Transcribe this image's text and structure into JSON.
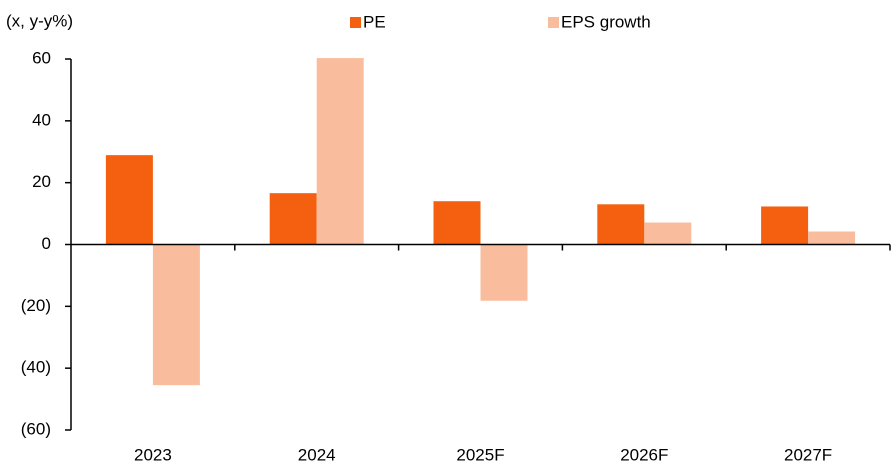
{
  "chart_data": {
    "type": "bar",
    "y_axis_label": "(x, y-y%)",
    "categories": [
      "2023",
      "2024",
      "2025F",
      "2026F",
      "2027F"
    ],
    "series": [
      {
        "name": "PE",
        "color": "#f4600f",
        "values": [
          28.9,
          16.6,
          14.0,
          13.0,
          12.3
        ]
      },
      {
        "name": "EPS growth",
        "color": "#f9bd9e",
        "values": [
          -45.5,
          60.3,
          -18.2,
          7.1,
          4.2
        ]
      }
    ],
    "ylim": [
      -60,
      60
    ],
    "yticks": [
      {
        "value": -60,
        "label": "(60)"
      },
      {
        "value": -40,
        "label": "(40)"
      },
      {
        "value": -20,
        "label": "(20)"
      },
      0,
      20,
      40,
      60
    ],
    "legend": "top"
  }
}
